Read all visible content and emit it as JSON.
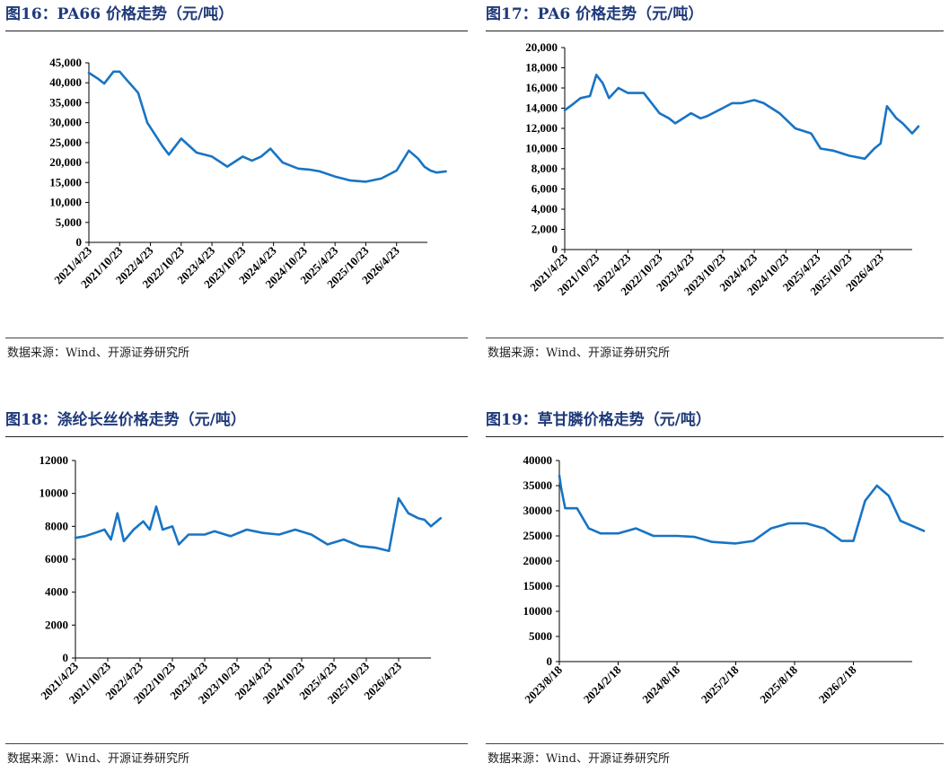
{
  "source_label": "数据来源：Wind、开源证券研究所",
  "line_color": "#1874c4",
  "chart_data": [
    {
      "type": "line",
      "title": "图16：PA66 价格走势（元/吨）",
      "ylim": [
        0,
        45000
      ],
      "yticks": [
        "0",
        "5,000",
        "10,000",
        "15,000",
        "20,000",
        "25,000",
        "30,000",
        "35,000",
        "40,000",
        "45,000"
      ],
      "xticks": [
        "2021/4/23",
        "2021/10/23",
        "2022/4/23",
        "2022/10/23",
        "2023/4/23",
        "2023/10/23",
        "2024/4/23",
        "2024/10/23",
        "2025/4/23",
        "2025/10/23",
        "2026/4/23"
      ],
      "x": [
        0,
        0.3,
        0.5,
        0.8,
        1.0,
        1.2,
        1.6,
        1.9,
        2.4,
        2.6,
        3.0,
        3.5,
        4.0,
        4.5,
        5.0,
        5.3,
        5.6,
        5.9,
        6.3,
        6.8,
        7.2,
        7.5,
        8.0,
        8.5,
        9.0,
        9.5,
        10.0,
        10.4,
        10.7,
        10.9,
        11.1,
        11.3,
        11.6
      ],
      "series": [
        {
          "values": [
            42500,
            41000,
            39800,
            42800,
            42800,
            41000,
            37500,
            30000,
            24000,
            22000,
            26000,
            22500,
            21500,
            19000,
            21500,
            20500,
            21500,
            23500,
            20000,
            18500,
            18200,
            17800,
            16500,
            15500,
            15200,
            16000,
            18000,
            23000,
            21000,
            19000,
            18000,
            17500,
            17800
          ]
        }
      ],
      "grid": false
    },
    {
      "type": "line",
      "title": "图17：PA6 价格走势（元/吨）",
      "ylim": [
        0,
        20000
      ],
      "yticks": [
        "0",
        "2,000",
        "4,000",
        "6,000",
        "8,000",
        "10,000",
        "12,000",
        "14,000",
        "16,000",
        "18,000",
        "20,000"
      ],
      "xticks": [
        "2021/4/23",
        "2021/10/23",
        "2022/4/23",
        "2022/10/23",
        "2023/4/23",
        "2023/10/23",
        "2024/4/23",
        "2024/10/23",
        "2025/4/23",
        "2025/10/23",
        "2026/4/23"
      ],
      "x": [
        0,
        0.3,
        0.5,
        0.8,
        1.0,
        1.2,
        1.4,
        1.7,
        2.0,
        2.5,
        3.0,
        3.3,
        3.5,
        4.0,
        4.3,
        4.5,
        5.0,
        5.3,
        5.6,
        6.0,
        6.3,
        6.8,
        7.3,
        7.8,
        8.1,
        8.5,
        9.0,
        9.5,
        9.8,
        10.0,
        10.2,
        10.5,
        10.7,
        11.0,
        11.2
      ],
      "series": [
        {
          "values": [
            13800,
            14500,
            15000,
            15200,
            17300,
            16500,
            15000,
            16000,
            15500,
            15500,
            13500,
            13000,
            12500,
            13500,
            13000,
            13200,
            14000,
            14500,
            14500,
            14800,
            14500,
            13500,
            12000,
            11500,
            10000,
            9800,
            9300,
            9000,
            10000,
            10500,
            14200,
            13000,
            12500,
            11500,
            12200
          ]
        }
      ],
      "grid": false
    },
    {
      "type": "line",
      "title": "图18：涤纶长丝价格走势（元/吨）",
      "ylim": [
        0,
        12000
      ],
      "yticks": [
        "0",
        "2000",
        "4000",
        "6000",
        "8000",
        "10000",
        "12000"
      ],
      "xticks": [
        "2021/4/23",
        "2021/10/23",
        "2022/4/23",
        "2022/10/23",
        "2023/4/23",
        "2023/10/23",
        "2024/4/23",
        "2024/10/23",
        "2025/4/23",
        "2025/10/23",
        "2026/4/23"
      ],
      "x": [
        0,
        0.3,
        0.6,
        0.9,
        1.1,
        1.3,
        1.5,
        1.8,
        2.1,
        2.3,
        2.5,
        2.7,
        3.0,
        3.2,
        3.5,
        4.0,
        4.3,
        4.8,
        5.3,
        5.8,
        6.3,
        6.8,
        7.3,
        7.8,
        8.3,
        8.8,
        9.3,
        9.7,
        10.0,
        10.3,
        10.6,
        10.8,
        11.0,
        11.3
      ],
      "series": [
        {
          "values": [
            7300,
            7400,
            7600,
            7800,
            7200,
            8800,
            7100,
            7800,
            8300,
            7800,
            9200,
            7800,
            8000,
            6900,
            7500,
            7500,
            7700,
            7400,
            7800,
            7600,
            7500,
            7800,
            7500,
            6900,
            7200,
            6800,
            6700,
            6500,
            9700,
            8800,
            8500,
            8400,
            8000,
            8500
          ]
        }
      ],
      "grid": false
    },
    {
      "type": "line",
      "title": "图19：草甘膦价格走势（元/吨）",
      "ylim": [
        0,
        40000
      ],
      "yticks": [
        "0",
        "5000",
        "10000",
        "15000",
        "20000",
        "25000",
        "30000",
        "35000",
        "40000"
      ],
      "xticks": [
        "2023/8/18",
        "2024/2/18",
        "2024/8/18",
        "2025/2/18",
        "2025/8/18",
        "2026/2/18"
      ],
      "x": [
        0,
        0.03,
        0.1,
        0.3,
        0.5,
        0.7,
        1.0,
        1.3,
        1.6,
        2.0,
        2.3,
        2.6,
        3.0,
        3.3,
        3.6,
        3.9,
        4.2,
        4.5,
        4.8,
        5.0,
        5.2,
        5.4,
        5.6,
        5.8,
        6.0,
        6.2
      ],
      "series": [
        {
          "values": [
            37000,
            34500,
            30500,
            30500,
            26500,
            25500,
            25500,
            26500,
            25000,
            25000,
            24800,
            23800,
            23500,
            24000,
            26500,
            27500,
            27500,
            26500,
            24000,
            24000,
            32000,
            35000,
            33000,
            28000,
            27000,
            26000
          ]
        }
      ],
      "grid": false
    }
  ]
}
